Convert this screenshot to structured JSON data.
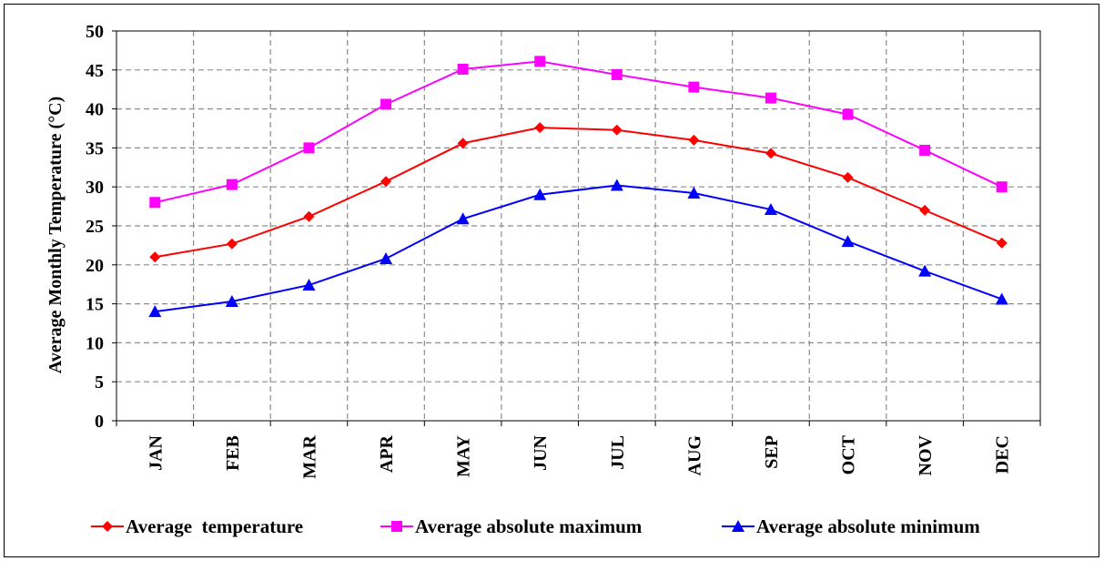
{
  "chart_data": {
    "type": "line",
    "title": "",
    "xlabel": "",
    "ylabel": "Average Monthly Temperature (°C)",
    "categories": [
      "JAN",
      "FEB",
      "MAR",
      "APR",
      "MAY",
      "JUN",
      "JUL",
      "AUG",
      "SEP",
      "OCT",
      "NOV",
      "DEC"
    ],
    "ylim": [
      0,
      50
    ],
    "yticks": [
      "0",
      "5",
      "10",
      "15",
      "20",
      "25",
      "30",
      "35",
      "40",
      "45",
      "50"
    ],
    "grid": "on (dashed)",
    "legend_position": "bottom",
    "series": [
      {
        "name": "Average  temperature",
        "color": "#ff0000",
        "marker": "diamond",
        "values": [
          21.0,
          22.7,
          26.2,
          30.7,
          35.6,
          37.6,
          37.3,
          36.0,
          34.3,
          31.2,
          27.0,
          22.8
        ]
      },
      {
        "name": "Average absolute maximum",
        "color": "#ff00ff",
        "marker": "square",
        "values": [
          28.0,
          30.3,
          35.0,
          40.6,
          45.1,
          46.1,
          44.4,
          42.8,
          41.4,
          39.3,
          34.7,
          30.0
        ]
      },
      {
        "name": "Average absolute minimum",
        "color": "#0000ff",
        "marker": "triangle",
        "values": [
          14.0,
          15.3,
          17.4,
          20.8,
          25.9,
          29.0,
          30.2,
          29.2,
          27.1,
          23.0,
          19.2,
          15.6
        ]
      }
    ]
  }
}
